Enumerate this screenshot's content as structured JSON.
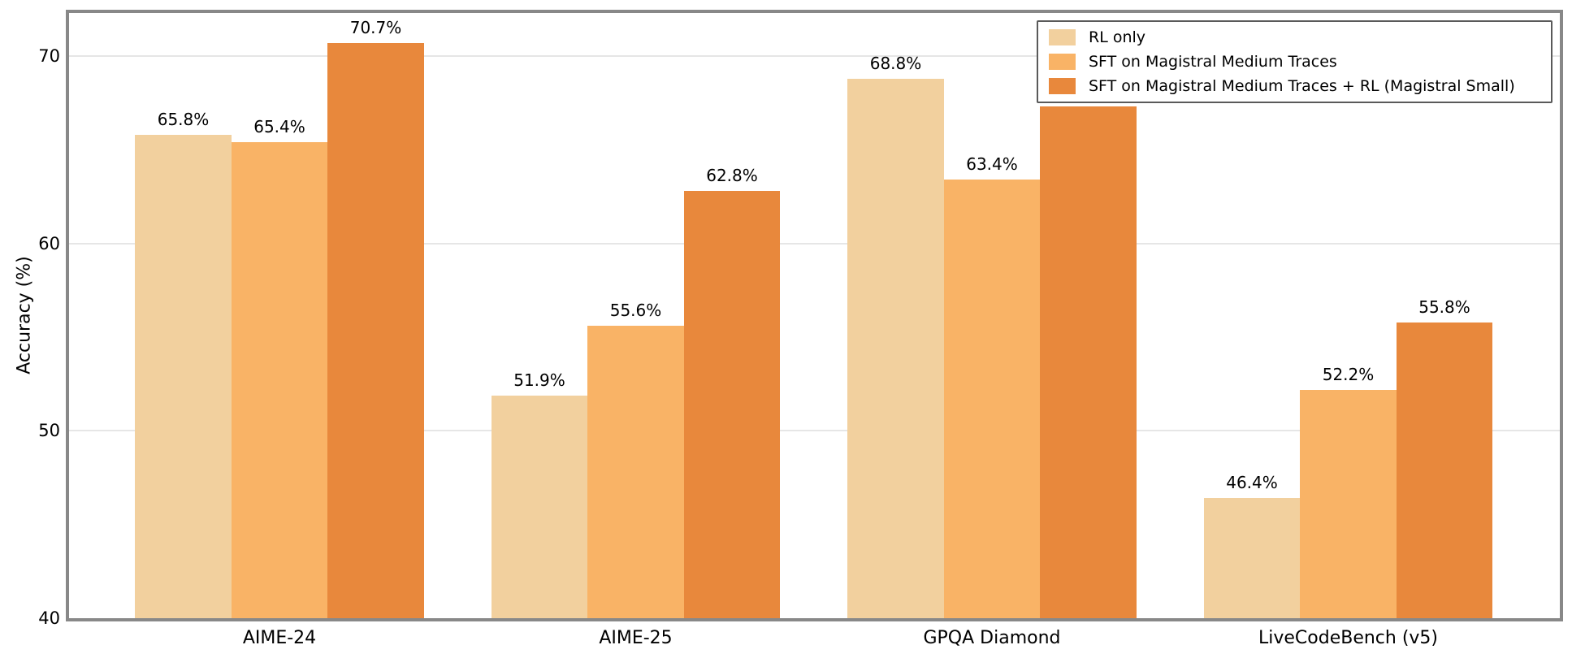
{
  "chart_data": {
    "type": "bar",
    "title": "",
    "ylabel": "Accuracy (%)",
    "xlabel": "",
    "categories": [
      "AIME-24",
      "AIME-25",
      "GPQA Diamond",
      "LiveCodeBench (v5)"
    ],
    "series": [
      {
        "name": "RL only",
        "color": "#F2D09E",
        "values": [
          65.8,
          51.9,
          68.8,
          46.4
        ]
      },
      {
        "name": "SFT on Magistral Medium Traces",
        "color": "#F9B366",
        "values": [
          65.4,
          55.6,
          63.4,
          52.2
        ]
      },
      {
        "name": "SFT on Magistral Medium Traces + RL (Magistral Small)",
        "color": "#E8883C",
        "values": [
          70.7,
          62.8,
          67.3,
          55.8
        ]
      }
    ],
    "bar_label_format": "{value}%",
    "bar_labels_visible": [
      [
        true,
        true,
        true,
        true
      ],
      [
        true,
        true,
        true,
        true
      ],
      [
        true,
        true,
        false,
        true
      ]
    ],
    "yticks": [
      "40",
      "50",
      "60",
      "70"
    ],
    "ytick_values": [
      40,
      50,
      60,
      70
    ],
    "ylim": [
      40,
      72.3
    ],
    "grid": "horizontal",
    "grid_color": "#e6e6e6",
    "spine_color": "#888888",
    "legend_position": "upper-right",
    "legend_border_color": "#5a5a5a",
    "background_color": "#ffffff"
  }
}
